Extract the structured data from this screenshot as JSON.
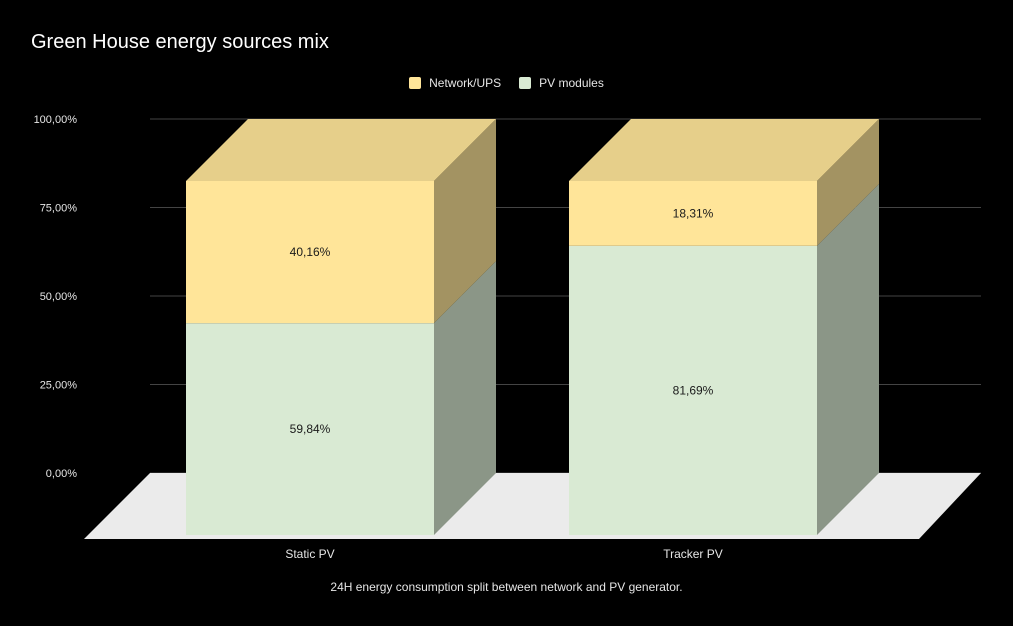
{
  "chart_data": {
    "type": "bar",
    "stacked": true,
    "percent_stacked": true,
    "three_d": true,
    "title": "Green House energy sources mix",
    "caption": "24H energy consumption split between network and PV generator.",
    "categories": [
      "Static PV",
      "Tracker PV"
    ],
    "series": [
      {
        "name": "PV modules",
        "values": [
          59.84,
          81.69
        ],
        "labels": [
          "59,84%",
          "81,69%"
        ],
        "color": "#d9ead3"
      },
      {
        "name": "Network/UPS",
        "values": [
          40.16,
          18.31
        ],
        "labels": [
          "40,16%",
          "18,31%"
        ],
        "color": "#ffe599"
      }
    ],
    "legend_order": [
      "Network/UPS",
      "PV modules"
    ],
    "legend_position": "top",
    "y_ticks": [
      "0,00%",
      "25,00%",
      "50,00%",
      "75,00%",
      "100,00%"
    ],
    "ylim": [
      0,
      100
    ],
    "grid": true,
    "colors": {
      "background": "#000000",
      "floor": "#ebebeb",
      "gridline": "#444444"
    }
  }
}
